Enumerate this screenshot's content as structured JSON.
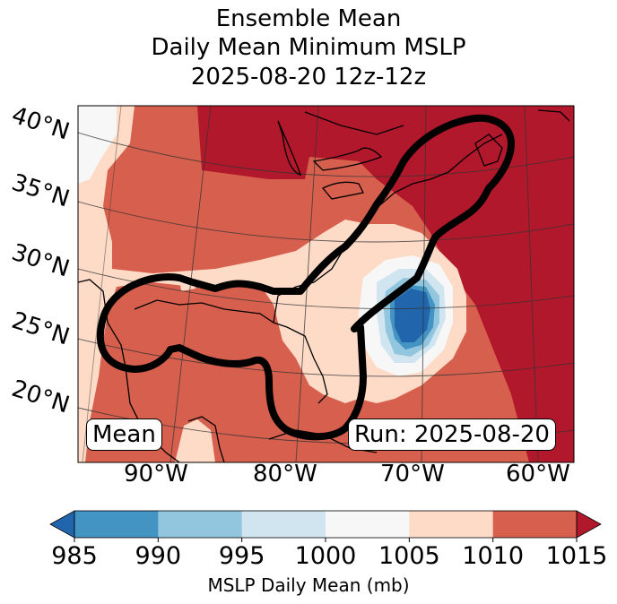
{
  "title_lines": [
    "Ensemble Mean",
    "Daily Mean Minimum MSLP",
    "2025-08-20 12z-12z"
  ],
  "map": {
    "lat_labels": [
      "40°N",
      "35°N",
      "30°N",
      "25°N",
      "20°N"
    ],
    "lon_labels": [
      "90°W",
      "80°W",
      "70°W",
      "60°W"
    ],
    "mean_box": "Mean",
    "run_box": "Run: 2025-08-20"
  },
  "colorbar": {
    "label": "MSLP Daily Mean (mb)",
    "ticks": [
      "985",
      "990",
      "995",
      "1000",
      "1005",
      "1010",
      "1015"
    ],
    "bins": [
      {
        "range": "<985",
        "color": "#2166ac"
      },
      {
        "range": "985-990",
        "color": "#4393c3"
      },
      {
        "range": "990-995",
        "color": "#92c5de"
      },
      {
        "range": "995-1000",
        "color": "#d1e5f0"
      },
      {
        "range": "1000-1005",
        "color": "#f7f7f7"
      },
      {
        "range": "1005-1010",
        "color": "#fddbc7"
      },
      {
        "range": "1010-1015",
        "color": "#d6604d"
      },
      {
        "range": ">1015",
        "color": "#b2182b"
      }
    ]
  }
}
